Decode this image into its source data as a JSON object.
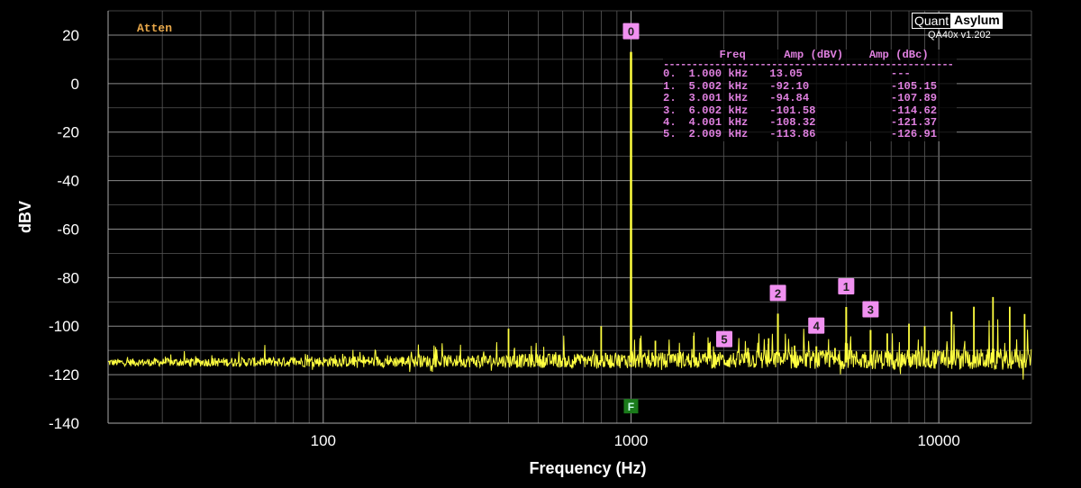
{
  "chart_data": {
    "type": "line",
    "xlabel": "Frequency (Hz)",
    "ylabel": "dBV",
    "xscale": "log",
    "xlim": [
      20,
      20000
    ],
    "ylim": [
      -140,
      30
    ],
    "x_ticks": [
      100,
      1000,
      10000
    ],
    "x_tick_labels": [
      "100",
      "1000",
      "10000"
    ],
    "y_ticks": [
      20,
      0,
      -20,
      -40,
      -60,
      -80,
      -100,
      -120,
      -140
    ],
    "y_tick_labels": [
      "20",
      "0",
      "-20",
      "-40",
      "-60",
      "-80",
      "-100",
      "-120",
      "-140"
    ],
    "grid": true,
    "trace_color": "#ffff40",
    "marker_color": "#f090f0",
    "noise_floor_dbv": -115,
    "spurs": [
      {
        "x": 400,
        "y": -101
      },
      {
        "x": 800,
        "y": -100
      },
      {
        "x": 1200,
        "y": -106
      },
      {
        "x": 1600,
        "y": -104
      },
      {
        "x": 2400,
        "y": -109
      },
      {
        "x": 2800,
        "y": -105
      },
      {
        "x": 3400,
        "y": -108
      },
      {
        "x": 4600,
        "y": -109
      },
      {
        "x": 6800,
        "y": -103
      },
      {
        "x": 8000,
        "y": -99
      },
      {
        "x": 9000,
        "y": -100
      },
      {
        "x": 11000,
        "y": -94
      },
      {
        "x": 13000,
        "y": -92
      },
      {
        "x": 15000,
        "y": -88
      },
      {
        "x": 17000,
        "y": -92
      },
      {
        "x": 19000,
        "y": -95
      }
    ],
    "harmonics": [
      {
        "id": "0",
        "freq": "1.000 kHz",
        "x": 1000,
        "amp_dbv": "13.05",
        "amp_dbc": "---",
        "y": 13.05
      },
      {
        "id": "1",
        "freq": "5.002 kHz",
        "x": 5002,
        "amp_dbv": "-92.10",
        "amp_dbc": "-105.15",
        "y": -92.1
      },
      {
        "id": "2",
        "freq": "3.001 kHz",
        "x": 3001,
        "amp_dbv": "-94.84",
        "amp_dbc": "-107.89",
        "y": -94.84
      },
      {
        "id": "3",
        "freq": "6.002 kHz",
        "x": 6002,
        "amp_dbv": "-101.58",
        "amp_dbc": "-114.62",
        "y": -101.58
      },
      {
        "id": "4",
        "freq": "4.001 kHz",
        "x": 4001,
        "amp_dbv": "-108.32",
        "amp_dbc": "-121.37",
        "y": -108.32
      },
      {
        "id": "5",
        "freq": "2.009 kHz",
        "x": 2009,
        "amp_dbv": "-113.86",
        "amp_dbc": "-126.91",
        "y": -113.86
      }
    ],
    "fundamental_marker": {
      "label": "F",
      "x": 1000,
      "y": -133,
      "color": "#1a7a1a"
    },
    "table_headers": [
      "Freq",
      "Amp (dBV)",
      "Amp (dBc)"
    ]
  },
  "atten_label": "Atten",
  "brand": {
    "left": "Quant",
    "right": "Asylum",
    "version": "QA40x v1.202"
  }
}
